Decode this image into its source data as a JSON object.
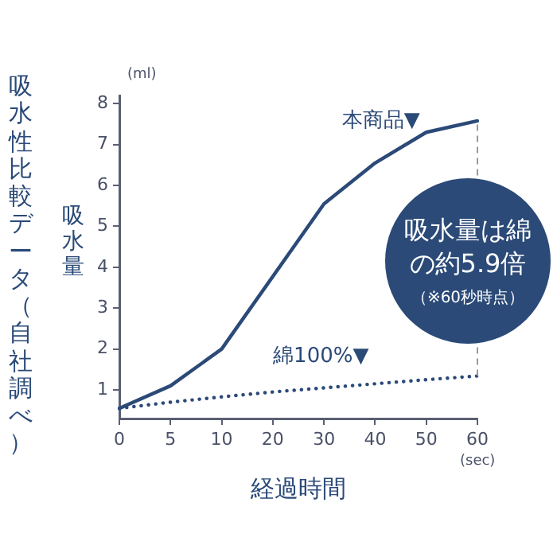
{
  "chart_data": {
    "type": "line",
    "title": "吸水性比較データ（自社調べ）",
    "ylabel": "吸水量",
    "xlabel": "経過時間",
    "categories": [
      "0",
      "5",
      "10",
      "20",
      "30",
      "40",
      "50",
      "60"
    ],
    "series": [
      {
        "name": "本商品▼",
        "color": "#2b4a78",
        "line_style": "solid",
        "values": [
          0.55,
          1.1,
          2.0,
          null,
          5.55,
          6.55,
          7.3,
          7.58
        ]
      },
      {
        "name": "綿100%▼",
        "color": "#2b4a78",
        "line_style": "dotted",
        "values": [
          0.55,
          0.7,
          0.83,
          0.95,
          1.05,
          1.15,
          1.25,
          1.34
        ]
      }
    ],
    "ylim": [
      0.3,
      8.2
    ],
    "yticks": [
      1,
      2,
      3,
      4,
      5,
      6,
      7,
      8
    ],
    "grid": false,
    "legend": false,
    "marker": "none",
    "ref_lines": [
      {
        "axis": "x",
        "value": "60",
        "color": "#999999",
        "line_style": "dashed"
      }
    ],
    "annotations": [
      "(ml)",
      "(sec)",
      "吸水量は綿の約5.9倍",
      "（※60秒時点）"
    ]
  }
}
